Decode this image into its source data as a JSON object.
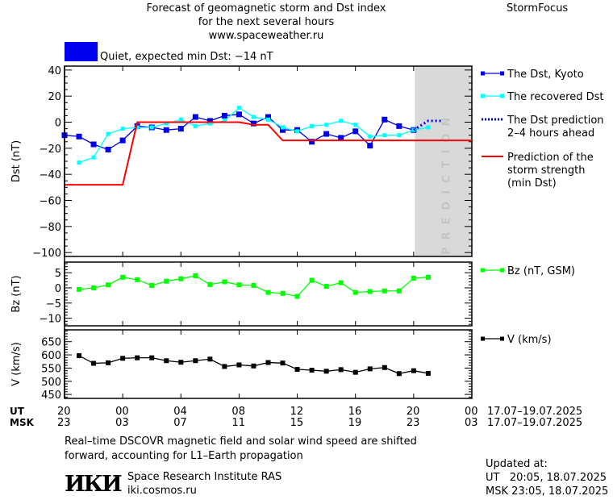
{
  "header": {
    "title_lines": [
      "Forecast of geomagnetic storm and Dst index",
      "for the next several hours",
      "www.spaceweather.ru"
    ],
    "brand": "StormFocus",
    "status_color": "#0000ee",
    "status_text": "Quiet, expected min Dst: −14 nT"
  },
  "footer": {
    "ut_label": "UT",
    "msk_label": "MSK",
    "ut_ticks": [
      "20",
      "00",
      "04",
      "08",
      "12",
      "16",
      "20",
      "00"
    ],
    "msk_ticks": [
      "23",
      "03",
      "07",
      "11",
      "15",
      "19",
      "23",
      "03"
    ],
    "ut_range": "17.07–19.07.2025",
    "msk_range": "17.07–19.07.2025",
    "note_lines": [
      "Real–time DSCOVR magnetic field and solar wind speed are shifted",
      "forward, accounting for L1–Earth propagation"
    ],
    "institute": "Space Research Institute RAS",
    "institute_url": "iki.cosmos.ru",
    "logo_text": "ИКИ",
    "updated_label": "Updated at:",
    "updated_ut": "UT   20:05, 18.07.2025",
    "updated_msk": "MSK 23:05, 18.07.2025"
  },
  "chart_data": [
    {
      "type": "line",
      "ylabel": "Dst (nT)",
      "ylim": [
        -103,
        43
      ],
      "yticks": [
        40,
        20,
        0,
        -20,
        -40,
        -60,
        -80,
        -100
      ],
      "xlim": [
        "17.07 20:00",
        "19.07 00:00"
      ],
      "prediction_zone": {
        "from": "18.07 20:05",
        "to": "19.07 00:00",
        "label": "PREDICTION",
        "color": "#d9d9d9"
      },
      "series": [
        {
          "name": "The Dst, Kyoto",
          "color": "#0000ee",
          "marker": "square",
          "points": [
            [
              "17.07 20:00",
              -10
            ],
            [
              "17.07 21:00",
              -11
            ],
            [
              "17.07 22:00",
              -17
            ],
            [
              "17.07 23:00",
              -21
            ],
            [
              "18.07 00:00",
              -14
            ],
            [
              "18.07 01:00",
              -3
            ],
            [
              "18.07 02:00",
              -4
            ],
            [
              "18.07 03:00",
              -6
            ],
            [
              "18.07 04:00",
              -5
            ],
            [
              "18.07 05:00",
              4
            ],
            [
              "18.07 06:00",
              1
            ],
            [
              "18.07 07:00",
              5
            ],
            [
              "18.07 08:00",
              6
            ],
            [
              "18.07 09:00",
              -1
            ],
            [
              "18.07 10:00",
              4
            ],
            [
              "18.07 11:00",
              -6
            ],
            [
              "18.07 12:00",
              -6
            ],
            [
              "18.07 13:00",
              -15
            ],
            [
              "18.07 14:00",
              -9
            ],
            [
              "18.07 15:00",
              -12
            ],
            [
              "18.07 16:00",
              -7
            ],
            [
              "18.07 17:00",
              -18
            ],
            [
              "18.07 18:00",
              2
            ],
            [
              "18.07 19:00",
              -3
            ],
            [
              "18.07 20:00",
              -6
            ]
          ]
        },
        {
          "name": "The recovered Dst",
          "color": "#00ffff",
          "marker": "small-square",
          "points": [
            [
              "17.07 21:00",
              -31
            ],
            [
              "17.07 22:00",
              -27
            ],
            [
              "17.07 23:00",
              -9
            ],
            [
              "18.07 00:00",
              -5
            ],
            [
              "18.07 01:00",
              -4
            ],
            [
              "18.07 02:00",
              -4
            ],
            [
              "18.07 03:00",
              -1
            ],
            [
              "18.07 04:00",
              2
            ],
            [
              "18.07 05:00",
              -3
            ],
            [
              "18.07 06:00",
              -1
            ],
            [
              "18.07 07:00",
              1
            ],
            [
              "18.07 08:00",
              11
            ],
            [
              "18.07 09:00",
              4
            ],
            [
              "18.07 10:00",
              2
            ],
            [
              "18.07 11:00",
              -4
            ],
            [
              "18.07 12:00",
              -7
            ],
            [
              "18.07 13:00",
              -3
            ],
            [
              "18.07 14:00",
              -2
            ],
            [
              "18.07 15:00",
              1
            ],
            [
              "18.07 16:00",
              -2
            ],
            [
              "18.07 17:00",
              -11
            ],
            [
              "18.07 18:00",
              -10
            ],
            [
              "18.07 19:00",
              -10
            ],
            [
              "18.07 20:00",
              -6
            ],
            [
              "18.07 21:00",
              -4
            ]
          ]
        },
        {
          "name": "The Dst prediction\n2–4 hours ahead",
          "color": "#0000ee",
          "style": "dotted",
          "points": [
            [
              "18.07 20:00",
              -6
            ],
            [
              "18.07 21:00",
              1
            ],
            [
              "18.07 22:00",
              1
            ]
          ]
        },
        {
          "name": "Prediction of the\nstorm strength\n(min Dst)",
          "color": "#ff0000",
          "style": "solid",
          "points": [
            [
              "17.07 20:00",
              -48
            ],
            [
              "18.07 00:00",
              -48
            ],
            [
              "18.07 01:00",
              0
            ],
            [
              "18.07 08:00",
              0
            ],
            [
              "18.07 09:00",
              -2
            ],
            [
              "18.07 10:00",
              -2
            ],
            [
              "18.07 11:00",
              -14
            ],
            [
              "19.07 00:00",
              -14
            ]
          ]
        }
      ]
    },
    {
      "type": "line",
      "ylabel": "Bz (nT)",
      "ylim": [
        -12.5,
        8.5
      ],
      "yticks": [
        5,
        0,
        -5,
        -10
      ],
      "series": [
        {
          "name": "Bz (nT, GSM)",
          "color": "#00ff00",
          "marker": "square",
          "points": [
            [
              "17.07 21:00",
              -0.5
            ],
            [
              "17.07 22:00",
              0
            ],
            [
              "17.07 23:00",
              1
            ],
            [
              "18.07 00:00",
              3.5
            ],
            [
              "18.07 01:00",
              2.7
            ],
            [
              "18.07 02:00",
              0.8
            ],
            [
              "18.07 03:00",
              2.2
            ],
            [
              "18.07 04:00",
              3
            ],
            [
              "18.07 05:00",
              4
            ],
            [
              "18.07 06:00",
              1.1
            ],
            [
              "18.07 07:00",
              2
            ],
            [
              "18.07 08:00",
              1
            ],
            [
              "18.07 09:00",
              0.8
            ],
            [
              "18.07 10:00",
              -1.5
            ],
            [
              "18.07 11:00",
              -1.8
            ],
            [
              "18.07 12:00",
              -2.8
            ],
            [
              "18.07 13:00",
              2.5
            ],
            [
              "18.07 14:00",
              0.5
            ],
            [
              "18.07 15:00",
              1.7
            ],
            [
              "18.07 16:00",
              -1.5
            ],
            [
              "18.07 17:00",
              -1.2
            ],
            [
              "18.07 18:00",
              -1
            ],
            [
              "18.07 19:00",
              -1
            ],
            [
              "18.07 20:00",
              3.2
            ],
            [
              "18.07 21:00",
              3.5
            ]
          ]
        }
      ]
    },
    {
      "type": "line",
      "ylabel": "V (km/s)",
      "ylim": [
        435,
        695
      ],
      "yticks": [
        650,
        600,
        550,
        500,
        450
      ],
      "series": [
        {
          "name": "V (km/s)",
          "color": "#000000",
          "marker": "square",
          "points": [
            [
              "17.07 21:00",
              597
            ],
            [
              "17.07 22:00",
              568
            ],
            [
              "17.07 23:00",
              570
            ],
            [
              "18.07 00:00",
              587
            ],
            [
              "18.07 01:00",
              589
            ],
            [
              "18.07 02:00",
              589
            ],
            [
              "18.07 03:00",
              578
            ],
            [
              "18.07 04:00",
              572
            ],
            [
              "18.07 05:00",
              578
            ],
            [
              "18.07 06:00",
              584
            ],
            [
              "18.07 07:00",
              556
            ],
            [
              "18.07 08:00",
              562
            ],
            [
              "18.07 09:00",
              558
            ],
            [
              "18.07 10:00",
              571
            ],
            [
              "18.07 11:00",
              569
            ],
            [
              "18.07 12:00",
              545
            ],
            [
              "18.07 13:00",
              542
            ],
            [
              "18.07 14:00",
              538
            ],
            [
              "18.07 15:00",
              544
            ],
            [
              "18.07 16:00",
              534
            ],
            [
              "18.07 17:00",
              547
            ],
            [
              "18.07 18:00",
              552
            ],
            [
              "18.07 19:00",
              529
            ],
            [
              "18.07 20:00",
              540
            ],
            [
              "18.07 21:00",
              530
            ]
          ]
        }
      ]
    }
  ]
}
